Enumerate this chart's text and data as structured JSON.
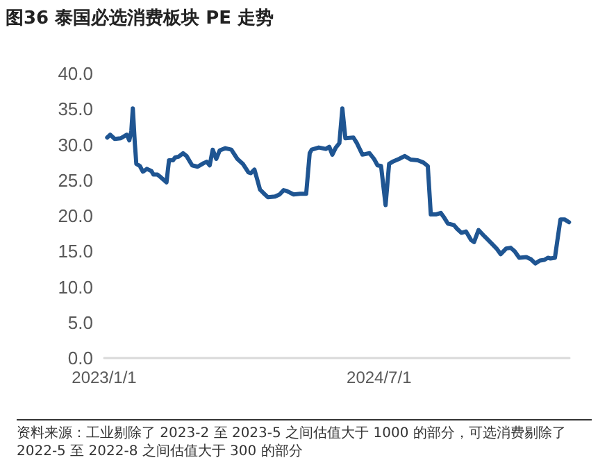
{
  "chart_data": {
    "type": "line",
    "title": "图36 泰国必选消费板块 PE 走势",
    "annotations": [
      "资料来源：工业剔除了 2023-2 至 2023-5 之间估值大于 1000 的部分，可选消费剔除了 2022-5 至 2022-8 之间估值大于 300 的部分"
    ],
    "x": [
      "2023-01-07",
      "2023-01-13",
      "2023-01-22",
      "2023-02-03",
      "2023-02-15",
      "2023-02-20",
      "2023-02-24",
      "2023-02-27",
      "2023-03-03",
      "2023-03-06",
      "2023-03-13",
      "2023-03-19",
      "2023-03-27",
      "2023-04-05",
      "2023-04-09",
      "2023-04-17",
      "2023-04-24",
      "2023-05-05",
      "2023-05-10",
      "2023-05-18",
      "2023-05-22",
      "2023-05-29",
      "2023-06-07",
      "2023-06-14",
      "2023-06-25",
      "2023-07-06",
      "2023-07-18",
      "2023-07-24",
      "2023-07-30",
      "2023-08-05",
      "2023-08-12",
      "2023-08-19",
      "2023-08-30",
      "2023-09-11",
      "2023-09-23",
      "2023-10-04",
      "2023-10-15",
      "2023-10-20",
      "2023-10-27",
      "2023-11-02",
      "2023-11-07",
      "2023-11-14",
      "2023-11-23",
      "2023-12-07",
      "2023-12-16",
      "2023-12-24",
      "2023-12-30",
      "2024-01-13",
      "2024-01-26",
      "2024-02-07",
      "2024-02-14",
      "2024-02-18",
      "2024-03-03",
      "2024-03-17",
      "2024-03-24",
      "2024-03-30",
      "2024-04-06",
      "2024-04-13",
      "2024-04-19",
      "2024-04-25",
      "2024-05-11",
      "2024-05-18",
      "2024-05-29",
      "2024-06-12",
      "2024-06-21",
      "2024-06-28",
      "2024-07-05",
      "2024-07-14",
      "2024-07-21",
      "2024-07-28",
      "2024-08-10",
      "2024-08-21",
      "2024-09-02",
      "2024-09-16",
      "2024-09-27",
      "2024-10-06",
      "2024-10-12",
      "2024-10-23",
      "2024-11-01",
      "2024-11-08",
      "2024-11-15",
      "2024-11-27",
      "2024-12-03",
      "2024-12-12",
      "2024-12-21",
      "2024-12-31",
      "2025-01-06",
      "2025-01-15",
      "2025-01-27",
      "2025-02-10",
      "2025-02-21",
      "2025-02-28",
      "2025-03-11",
      "2025-03-20",
      "2025-03-28",
      "2025-04-06",
      "2025-04-20",
      "2025-04-29",
      "2025-05-08",
      "2025-05-17",
      "2025-05-26",
      "2025-06-02",
      "2025-06-07",
      "2025-06-16",
      "2025-06-21",
      "2025-06-27",
      "2025-07-05",
      "2025-07-14"
    ],
    "values": [
      31.0,
      31.4,
      30.8,
      30.9,
      31.4,
      30.6,
      31.9,
      35.1,
      30.2,
      27.3,
      27.0,
      26.2,
      26.6,
      26.3,
      25.8,
      25.8,
      25.4,
      24.7,
      27.8,
      27.8,
      28.2,
      28.3,
      28.8,
      28.4,
      27.1,
      26.9,
      27.4,
      27.6,
      27.1,
      29.3,
      28.0,
      29.2,
      29.5,
      29.3,
      28.0,
      27.3,
      26.1,
      26.0,
      26.5,
      25.0,
      23.7,
      23.2,
      22.6,
      22.7,
      23.0,
      23.6,
      23.5,
      23.0,
      23.1,
      23.1,
      28.8,
      29.3,
      29.6,
      29.4,
      29.7,
      28.6,
      29.6,
      30.2,
      35.1,
      30.9,
      31.0,
      30.2,
      28.6,
      28.8,
      28.0,
      27.1,
      27.0,
      21.5,
      27.3,
      27.6,
      28.0,
      28.4,
      27.9,
      27.8,
      27.5,
      27.0,
      20.2,
      20.2,
      20.4,
      19.7,
      18.9,
      18.7,
      18.2,
      17.6,
      17.8,
      16.6,
      16.3,
      18.0,
      17.1,
      16.1,
      15.3,
      14.6,
      15.4,
      15.5,
      15.0,
      14.1,
      14.2,
      13.9,
      13.3,
      13.7,
      13.8,
      14.1,
      14.0,
      14.1,
      16.6,
      19.5,
      19.5,
      19.1
    ],
    "color": "#1f5592",
    "marker": "none",
    "line_style": "solid",
    "xlim": [
      "2023-01-01",
      "2025-07-15"
    ],
    "xticks": [
      {
        "value": "2023-01-01",
        "label": "2023/1/1"
      },
      {
        "value": "2024-07-01",
        "label": "2024/7/1"
      }
    ],
    "ylim": [
      0,
      40
    ],
    "yticks": [
      {
        "value": 0,
        "label": "0.0"
      },
      {
        "value": 5,
        "label": "5.0"
      },
      {
        "value": 10,
        "label": "10.0"
      },
      {
        "value": 15,
        "label": "15.0"
      },
      {
        "value": 20,
        "label": "20.0"
      },
      {
        "value": 25,
        "label": "25.0"
      },
      {
        "value": 30,
        "label": "30.0"
      },
      {
        "value": 35,
        "label": "35.0"
      },
      {
        "value": 40,
        "label": "40.0"
      }
    ]
  }
}
